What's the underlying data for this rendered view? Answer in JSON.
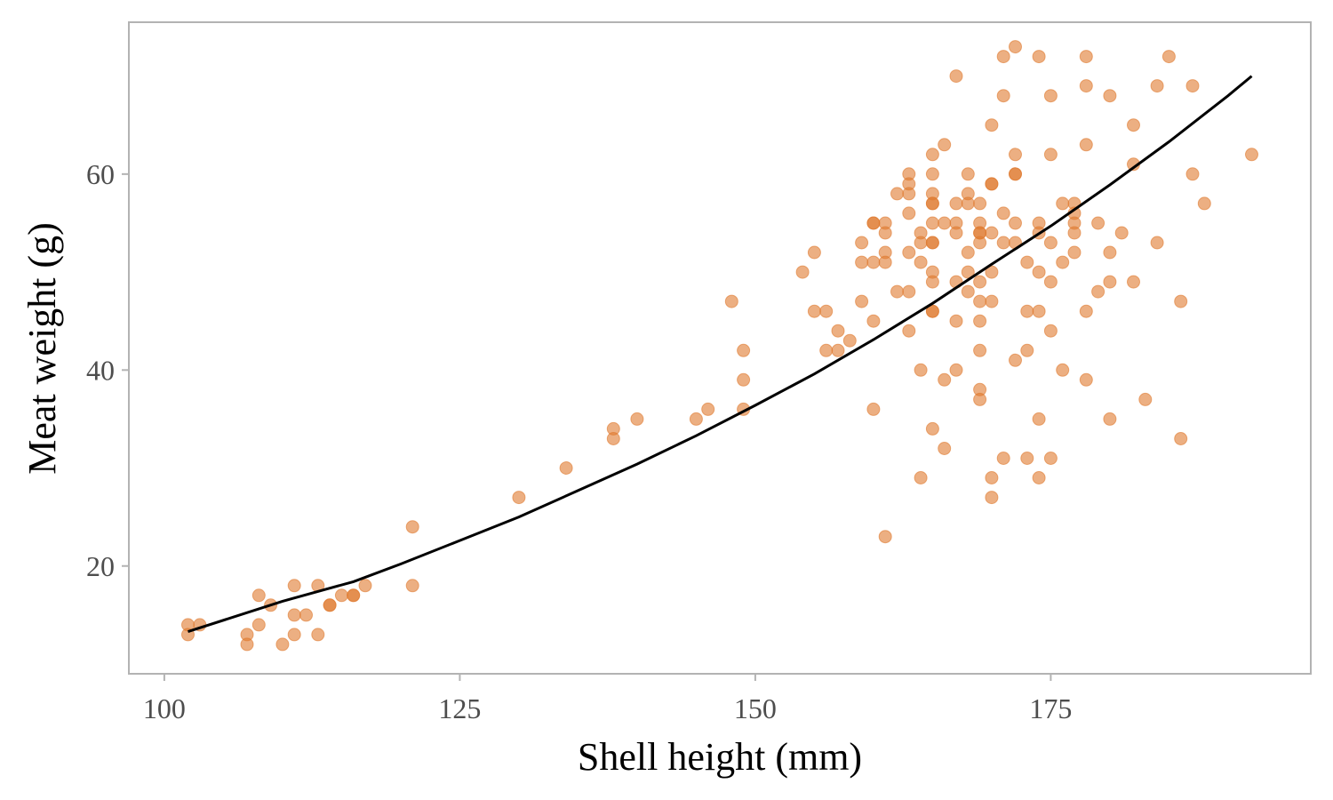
{
  "chart_data": {
    "type": "scatter",
    "title": "",
    "xlabel": "Shell height (mm)",
    "ylabel": "Meat weight (g)",
    "xlim": [
      97,
      197
    ],
    "ylim": [
      9,
      75.5
    ],
    "xticks": [
      100,
      125,
      150,
      175
    ],
    "yticks": [
      20,
      40,
      60
    ],
    "grid": false,
    "legend": "none",
    "point_color": "#e07a2e",
    "line_color": "#000000",
    "frame_color": "#b3b3b3",
    "points": {
      "x": [
        102,
        102,
        103,
        107,
        107,
        108,
        108,
        109,
        110,
        111,
        111,
        111,
        112,
        113,
        113,
        114,
        114,
        115,
        116,
        116,
        117,
        121,
        121,
        130,
        134,
        138,
        138,
        140,
        145,
        146,
        148,
        149,
        149,
        149,
        154,
        155,
        155,
        156,
        156,
        157,
        157,
        158,
        159,
        159,
        159,
        160,
        160,
        160,
        160,
        160,
        161,
        161,
        161,
        161,
        161,
        162,
        162,
        163,
        163,
        163,
        163,
        163,
        163,
        163,
        164,
        164,
        164,
        164,
        164,
        165,
        165,
        165,
        165,
        165,
        165,
        165,
        165,
        165,
        165,
        165,
        165,
        165,
        166,
        166,
        166,
        166,
        167,
        167,
        167,
        167,
        167,
        167,
        167,
        168,
        168,
        168,
        168,
        168,
        168,
        169,
        169,
        169,
        169,
        169,
        169,
        169,
        169,
        169,
        169,
        169,
        170,
        170,
        170,
        170,
        170,
        170,
        170,
        170,
        171,
        171,
        171,
        171,
        171,
        172,
        172,
        172,
        172,
        172,
        172,
        172,
        173,
        173,
        173,
        173,
        174,
        174,
        174,
        174,
        174,
        174,
        174,
        175,
        175,
        175,
        175,
        175,
        175,
        176,
        176,
        176,
        177,
        177,
        177,
        177,
        177,
        178,
        178,
        178,
        178,
        178,
        179,
        179,
        180,
        180,
        180,
        180,
        181,
        182,
        182,
        182,
        183,
        184,
        184,
        185,
        186,
        186,
        187,
        187,
        188,
        192
      ],
      "y": [
        14,
        13,
        14,
        13,
        12,
        17,
        14,
        16,
        12,
        18,
        15,
        13,
        15,
        18,
        13,
        16,
        16,
        17,
        17,
        17,
        18,
        24,
        18,
        27,
        30,
        34,
        33,
        35,
        35,
        36,
        47,
        42,
        39,
        36,
        50,
        52,
        46,
        46,
        42,
        44,
        42,
        43,
        53,
        51,
        47,
        55,
        55,
        51,
        45,
        36,
        55,
        54,
        52,
        51,
        23,
        58,
        48,
        60,
        59,
        58,
        56,
        52,
        48,
        44,
        54,
        53,
        51,
        40,
        29,
        62,
        60,
        58,
        57,
        57,
        55,
        53,
        53,
        50,
        49,
        46,
        46,
        34,
        63,
        55,
        39,
        32,
        70,
        57,
        55,
        54,
        49,
        45,
        40,
        60,
        58,
        57,
        52,
        50,
        48,
        57,
        55,
        54,
        54,
        53,
        49,
        47,
        45,
        42,
        38,
        37,
        65,
        59,
        59,
        54,
        50,
        47,
        29,
        27,
        72,
        68,
        56,
        53,
        31,
        73,
        62,
        60,
        60,
        55,
        53,
        41,
        51,
        46,
        42,
        31,
        72,
        55,
        54,
        50,
        46,
        35,
        29,
        68,
        62,
        53,
        49,
        44,
        31,
        57,
        51,
        40,
        57,
        56,
        55,
        54,
        52,
        72,
        69,
        63,
        46,
        39,
        55,
        48,
        68,
        52,
        49,
        35,
        54,
        65,
        61,
        49,
        37,
        69,
        53,
        72,
        47,
        33,
        69,
        60,
        57,
        62
      ]
    },
    "trend_line": {
      "x": [
        102,
        110,
        116,
        120,
        125,
        130,
        135,
        140,
        145,
        150,
        155,
        160,
        165,
        170,
        175,
        180,
        185,
        190,
        192
      ],
      "y": [
        13.3,
        16.4,
        18.4,
        20.2,
        22.6,
        25.0,
        27.7,
        30.4,
        33.3,
        36.4,
        39.6,
        43.1,
        46.8,
        50.8,
        54.7,
        58.9,
        63.3,
        68.0,
        70.0
      ]
    }
  }
}
